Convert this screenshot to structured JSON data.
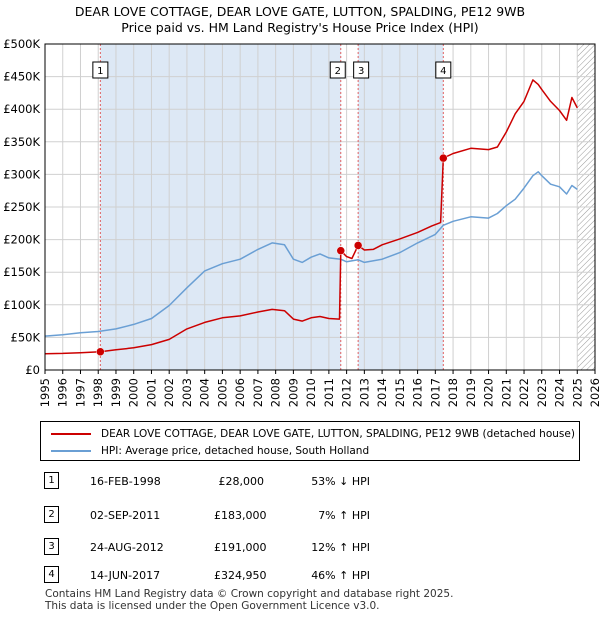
{
  "title_line1": "DEAR LOVE COTTAGE, DEAR LOVE GATE, LUTTON, SPALDING, PE12 9WB",
  "title_line2": "Price paid vs. HM Land Registry's House Price Index (HPI)",
  "legend": {
    "property_label": "DEAR LOVE COTTAGE, DEAR LOVE GATE, LUTTON, SPALDING, PE12 9WB (detached house)",
    "hpi_label": "HPI: Average price, detached house, South Holland"
  },
  "colors": {
    "property": "#cc0000",
    "hpi": "#6a9fd4",
    "marker_line": "#e06060",
    "shade": "#dde8f5"
  },
  "sales": [
    {
      "num": "1",
      "date": "16-FEB-1998",
      "price": "£28,000",
      "hpi_change": "53% ↓ HPI"
    },
    {
      "num": "2",
      "date": "02-SEP-2011",
      "price": "£183,000",
      "hpi_change": "7% ↑ HPI"
    },
    {
      "num": "3",
      "date": "24-AUG-2012",
      "price": "£191,000",
      "hpi_change": "12% ↑ HPI"
    },
    {
      "num": "4",
      "date": "14-JUN-2017",
      "price": "£324,950",
      "hpi_change": "46% ↑ HPI"
    }
  ],
  "footer_line1": "Contains HM Land Registry data © Crown copyright and database right 2025.",
  "footer_line2": "This data is licensed under the Open Government Licence v3.0.",
  "chart_data": {
    "type": "line",
    "title": "DEAR LOVE COTTAGE, DEAR LOVE GATE, LUTTON, SPALDING, PE12 9WB — Price paid vs. HM Land Registry's House Price Index (HPI)",
    "xlim": [
      1995,
      2026
    ],
    "ylim": [
      0,
      500000
    ],
    "x_ticks": [
      1995,
      1996,
      1997,
      1998,
      1999,
      2000,
      2001,
      2002,
      2003,
      2004,
      2005,
      2006,
      2007,
      2008,
      2009,
      2010,
      2011,
      2012,
      2013,
      2014,
      2015,
      2016,
      2017,
      2018,
      2019,
      2020,
      2021,
      2022,
      2023,
      2024,
      2025,
      2026
    ],
    "y_ticks": [
      {
        "value": 0,
        "label": "£0"
      },
      {
        "value": 50000,
        "label": "£50K"
      },
      {
        "value": 100000,
        "label": "£100K"
      },
      {
        "value": 150000,
        "label": "£150K"
      },
      {
        "value": 200000,
        "label": "£200K"
      },
      {
        "value": 250000,
        "label": "£250K"
      },
      {
        "value": 300000,
        "label": "£300K"
      },
      {
        "value": 350000,
        "label": "£350K"
      },
      {
        "value": 400000,
        "label": "£400K"
      },
      {
        "value": 450000,
        "label": "£450K"
      },
      {
        "value": 500000,
        "label": "£500K"
      }
    ],
    "grid": true,
    "future_hatch_from": 2025.0,
    "series": [
      {
        "name": "DEAR LOVE COTTAGE, DEAR LOVE GATE, LUTTON, SPALDING, PE12 9WB (detached house)",
        "color": "#cc0000",
        "points": [
          [
            1995.0,
            25000
          ],
          [
            1996.0,
            25500
          ],
          [
            1997.0,
            26500
          ],
          [
            1998.12,
            28000
          ],
          [
            1999.0,
            31000
          ],
          [
            2000.0,
            34000
          ],
          [
            2001.0,
            39000
          ],
          [
            2002.0,
            47000
          ],
          [
            2003.0,
            63000
          ],
          [
            2004.0,
            73000
          ],
          [
            2005.0,
            80000
          ],
          [
            2006.0,
            83000
          ],
          [
            2007.0,
            89000
          ],
          [
            2007.8,
            93000
          ],
          [
            2008.5,
            91000
          ],
          [
            2009.0,
            78000
          ],
          [
            2009.5,
            75000
          ],
          [
            2010.0,
            80000
          ],
          [
            2010.5,
            82000
          ],
          [
            2011.0,
            79000
          ],
          [
            2011.6,
            78000
          ],
          [
            2011.67,
            183000
          ],
          [
            2012.0,
            174000
          ],
          [
            2012.3,
            171000
          ],
          [
            2012.65,
            191000
          ],
          [
            2013.0,
            184000
          ],
          [
            2013.5,
            185000
          ],
          [
            2014.0,
            192000
          ],
          [
            2015.0,
            201000
          ],
          [
            2016.0,
            211000
          ],
          [
            2016.8,
            221000
          ],
          [
            2017.3,
            226000
          ],
          [
            2017.45,
            324950
          ],
          [
            2018.0,
            332000
          ],
          [
            2019.0,
            340000
          ],
          [
            2020.0,
            338000
          ],
          [
            2020.5,
            342000
          ],
          [
            2021.0,
            365000
          ],
          [
            2021.5,
            393000
          ],
          [
            2022.0,
            412000
          ],
          [
            2022.5,
            445000
          ],
          [
            2022.8,
            438000
          ],
          [
            2023.0,
            430000
          ],
          [
            2023.5,
            412000
          ],
          [
            2024.0,
            398000
          ],
          [
            2024.4,
            383000
          ],
          [
            2024.7,
            418000
          ],
          [
            2025.0,
            402000
          ]
        ]
      },
      {
        "name": "HPI: Average price, detached house, South Holland",
        "color": "#6a9fd4",
        "points": [
          [
            1995.0,
            52000
          ],
          [
            1996.0,
            54000
          ],
          [
            1997.0,
            57000
          ],
          [
            1998.0,
            59000
          ],
          [
            1999.0,
            63000
          ],
          [
            2000.0,
            70000
          ],
          [
            2001.0,
            79000
          ],
          [
            2002.0,
            99000
          ],
          [
            2003.0,
            126000
          ],
          [
            2004.0,
            152000
          ],
          [
            2005.0,
            163000
          ],
          [
            2006.0,
            170000
          ],
          [
            2007.0,
            185000
          ],
          [
            2007.8,
            195000
          ],
          [
            2008.5,
            192000
          ],
          [
            2009.0,
            170000
          ],
          [
            2009.5,
            165000
          ],
          [
            2010.0,
            173000
          ],
          [
            2010.5,
            178000
          ],
          [
            2011.0,
            172000
          ],
          [
            2011.67,
            170000
          ],
          [
            2012.0,
            166000
          ],
          [
            2012.65,
            169000
          ],
          [
            2013.0,
            165000
          ],
          [
            2014.0,
            170000
          ],
          [
            2015.0,
            180000
          ],
          [
            2016.0,
            195000
          ],
          [
            2017.0,
            208000
          ],
          [
            2017.45,
            222000
          ],
          [
            2018.0,
            228000
          ],
          [
            2019.0,
            235000
          ],
          [
            2020.0,
            233000
          ],
          [
            2020.5,
            240000
          ],
          [
            2021.0,
            252000
          ],
          [
            2021.5,
            262000
          ],
          [
            2022.0,
            279000
          ],
          [
            2022.5,
            298000
          ],
          [
            2022.8,
            304000
          ],
          [
            2023.0,
            298000
          ],
          [
            2023.5,
            285000
          ],
          [
            2024.0,
            281000
          ],
          [
            2024.4,
            270000
          ],
          [
            2024.7,
            283000
          ],
          [
            2025.0,
            277000
          ]
        ]
      }
    ],
    "sale_markers": [
      {
        "label": "1",
        "x": 1998.12,
        "y": 28000
      },
      {
        "label": "2",
        "x": 2011.67,
        "y": 183000
      },
      {
        "label": "3",
        "x": 2012.65,
        "y": 191000
      },
      {
        "label": "4",
        "x": 2017.45,
        "y": 324950
      }
    ]
  }
}
